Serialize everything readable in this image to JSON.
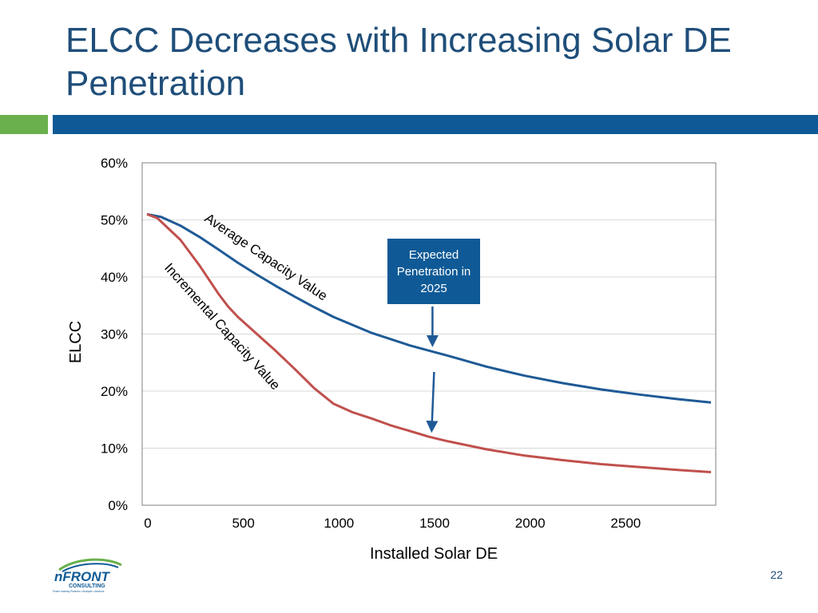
{
  "slide": {
    "title": "ELCC Decreases with Increasing Solar DE Penetration",
    "page_number": "22",
    "colors": {
      "title": "#1f4e79",
      "accent_green": "#6ab04c",
      "accent_blue": "#0f5a96"
    },
    "logo": {
      "brand": "nFRONT",
      "sub": "CONSULTING",
      "tagline": "Power Industry Planners • Analysts • Advisors"
    }
  },
  "callout": {
    "text": "Expected Penetration in 2025"
  },
  "chart_data": {
    "type": "line",
    "title": "",
    "xlabel": "Installed Solar DE",
    "ylabel": "ELCC",
    "xlim": [
      0,
      3000
    ],
    "ylim": [
      0,
      0.6
    ],
    "x_ticks": [
      0,
      500,
      1000,
      1500,
      2000,
      2500
    ],
    "y_ticks": [
      0,
      0.1,
      0.2,
      0.3,
      0.4,
      0.5,
      0.6
    ],
    "y_tick_format": "percent",
    "grid": "horizontal",
    "series": [
      {
        "name": "Average Capacity Value",
        "color": "#1f5a96",
        "x": [
          25,
          100,
          200,
          300,
          400,
          500,
          600,
          700,
          800,
          900,
          1000,
          1200,
          1400,
          1510,
          1600,
          1800,
          2000,
          2200,
          2400,
          2600,
          2800,
          2975
        ],
        "y": [
          0.51,
          0.505,
          0.49,
          0.47,
          0.448,
          0.425,
          0.404,
          0.384,
          0.365,
          0.347,
          0.33,
          0.302,
          0.28,
          0.27,
          0.262,
          0.243,
          0.227,
          0.214,
          0.203,
          0.194,
          0.186,
          0.18
        ]
      },
      {
        "name": "Incremental Capacity Value",
        "color": "#c0504d",
        "x": [
          25,
          80,
          200,
          300,
          400,
          450,
          500,
          600,
          700,
          800,
          900,
          1000,
          1100,
          1200,
          1300,
          1400,
          1500,
          1600,
          1800,
          2000,
          2200,
          2400,
          2600,
          2800,
          2975
        ],
        "y": [
          0.51,
          0.503,
          0.465,
          0.42,
          0.37,
          0.348,
          0.33,
          0.3,
          0.27,
          0.238,
          0.205,
          0.178,
          0.163,
          0.152,
          0.14,
          0.13,
          0.12,
          0.112,
          0.098,
          0.087,
          0.079,
          0.072,
          0.067,
          0.062,
          0.058
        ]
      }
    ],
    "annotations": [
      {
        "text": "Average Capacity Value",
        "series": "Average Capacity Value"
      },
      {
        "text": "Incremental Capacity Value",
        "series": "Incremental Capacity Value"
      }
    ],
    "arrows": [
      {
        "x": 1510,
        "y": 0.27,
        "color": "#1f5a96"
      },
      {
        "x": 1510,
        "y": 0.12,
        "color": "#1f5a96"
      }
    ]
  }
}
